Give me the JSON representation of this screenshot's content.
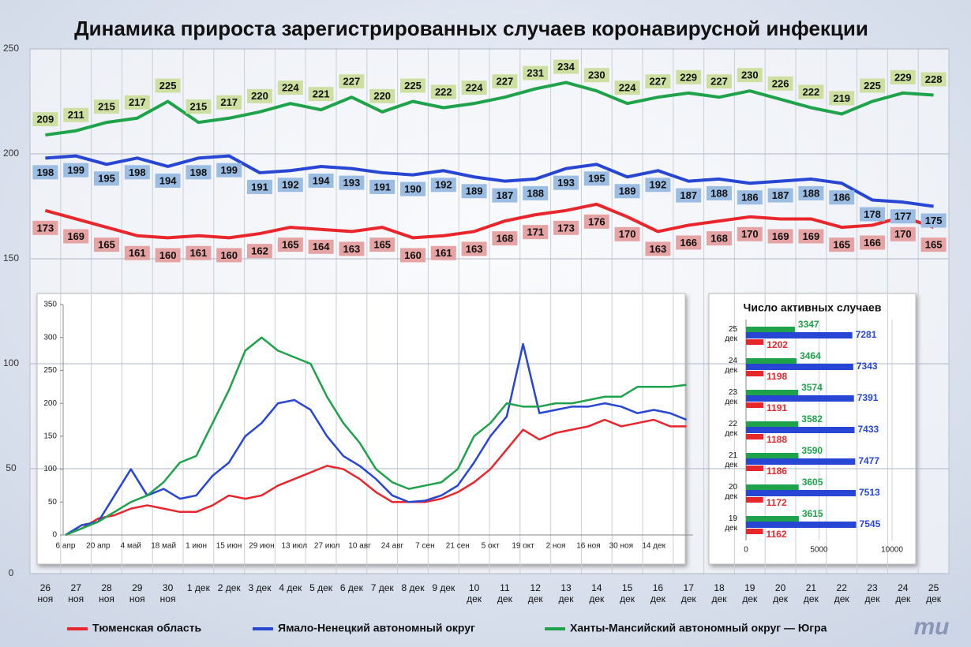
{
  "chart_data": [
    {
      "type": "line",
      "title": "Динамика прироста зарегистрированных случаев коронавирусной инфекции",
      "categories": [
        "26\nноя",
        "27\nноя",
        "28\nноя",
        "29\nноя",
        "30\nноя",
        "1 дек",
        "2 дек",
        "3 дек",
        "4 дек",
        "5 дек",
        "6 дек",
        "7 дек",
        "8 дек",
        "9 дек",
        "10\nдек",
        "11\nдек",
        "12\nдек",
        "13\nдек",
        "14\nдек",
        "15\nдек",
        "16\nдек",
        "17\nдек",
        "18\nдек",
        "19\nдек",
        "20\nдек",
        "21\nдек",
        "22\nдек",
        "23\nдек",
        "24\nдек",
        "25\nдек"
      ],
      "series": [
        {
          "name": "Тюменская область",
          "color": "#e8262b",
          "label_color": "#e6a3a3",
          "values": [
            173,
            169,
            165,
            161,
            160,
            161,
            160,
            162,
            165,
            164,
            163,
            165,
            160,
            161,
            163,
            168,
            171,
            173,
            176,
            170,
            163,
            166,
            168,
            170,
            169,
            169,
            165,
            166,
            170,
            165
          ]
        },
        {
          "name": "Ямало-Ненецкий автономный округ",
          "color": "#2746d4",
          "label_color": "#9cbde3",
          "values": [
            198,
            199,
            195,
            198,
            194,
            198,
            199,
            191,
            192,
            194,
            193,
            191,
            190,
            192,
            189,
            187,
            188,
            193,
            195,
            189,
            192,
            187,
            188,
            186,
            187,
            188,
            186,
            178,
            177,
            175
          ]
        },
        {
          "name": "Ханты-Мансийский автономный округ — Югра",
          "color": "#1ea34a",
          "label_color": "#cde0a2",
          "values": [
            209,
            211,
            215,
            217,
            225,
            215,
            217,
            220,
            224,
            221,
            227,
            220,
            225,
            222,
            224,
            227,
            231,
            234,
            230,
            224,
            227,
            229,
            227,
            230,
            226,
            222,
            219,
            225,
            229,
            228
          ]
        }
      ],
      "ylim": [
        0,
        250
      ],
      "yticks": [
        0,
        50,
        100,
        150,
        200,
        250
      ],
      "grid": true,
      "legend": "bottom"
    },
    {
      "type": "line",
      "categories": [
        "6 апр",
        null,
        "20 апр",
        null,
        "4 май",
        null,
        "18 май",
        null,
        "1 июн",
        null,
        "15 июн",
        null,
        "29 июн",
        null,
        "13 июл",
        null,
        "27 июл",
        null,
        "10 авг",
        null,
        "24 авг",
        null,
        "7 сен",
        null,
        "21 сен",
        null,
        "5 окт",
        null,
        "19 окт",
        null,
        "2 ноя",
        null,
        "16 ноя",
        null,
        "30 ноя",
        null,
        "14 дек",
        null,
        null
      ],
      "series": [
        {
          "color": "#e8262b",
          "values": [
            0,
            10,
            25,
            30,
            40,
            45,
            40,
            35,
            35,
            45,
            60,
            55,
            60,
            75,
            85,
            95,
            105,
            100,
            85,
            65,
            50,
            50,
            50,
            55,
            65,
            80,
            100,
            130,
            160,
            145,
            155,
            160,
            165,
            175,
            165,
            170,
            175,
            165,
            165
          ]
        },
        {
          "color": "#2746d4",
          "values": [
            0,
            15,
            20,
            60,
            100,
            60,
            70,
            55,
            60,
            90,
            110,
            150,
            170,
            200,
            205,
            190,
            150,
            120,
            105,
            85,
            60,
            50,
            52,
            60,
            75,
            110,
            150,
            180,
            290,
            185,
            190,
            195,
            195,
            200,
            195,
            185,
            190,
            185,
            175
          ]
        },
        {
          "color": "#1ea34a",
          "values": [
            0,
            10,
            20,
            35,
            50,
            60,
            80,
            110,
            120,
            170,
            220,
            280,
            300,
            280,
            270,
            260,
            210,
            170,
            140,
            100,
            80,
            70,
            75,
            80,
            100,
            150,
            170,
            200,
            195,
            195,
            200,
            200,
            205,
            210,
            210,
            225,
            225,
            225,
            228
          ]
        }
      ],
      "ylim": [
        0,
        350
      ],
      "yticks": [
        0,
        50,
        100,
        150,
        200,
        250,
        300,
        350
      ],
      "grid": false
    },
    {
      "type": "bar",
      "orientation": "horizontal",
      "title": "Число активных случаев",
      "categories": [
        "25\nдек",
        "24\nдек",
        "23\nдек",
        "22\nдек",
        "21\nдек",
        "20\nдек",
        "19\nдек"
      ],
      "series": [
        {
          "color": "#1ea34a",
          "values": [
            3347,
            3464,
            3574,
            3582,
            3590,
            3605,
            3615
          ]
        },
        {
          "color": "#2746d4",
          "values": [
            7281,
            7343,
            7391,
            7433,
            7477,
            7513,
            7545
          ]
        },
        {
          "color": "#e8262b",
          "values": [
            1202,
            1198,
            1191,
            1188,
            1186,
            1172,
            1162
          ]
        }
      ],
      "xlim": [
        0,
        10000
      ],
      "xticks": [
        0,
        5000,
        10000
      ],
      "grid": true
    }
  ],
  "brand": "mu"
}
